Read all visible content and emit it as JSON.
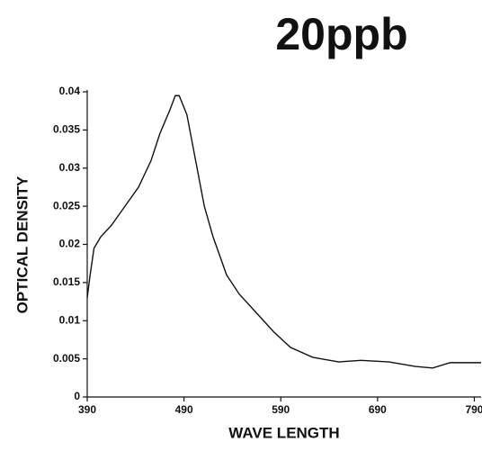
{
  "chart_data": {
    "type": "line",
    "title": "20ppb",
    "x_label": "WAVE LENGTH",
    "y_label": "OPTICAL DENSITY",
    "x": [
      390,
      393,
      397,
      404,
      415,
      429,
      443,
      456,
      465,
      475,
      481,
      485,
      493,
      502,
      511,
      520,
      534,
      547,
      565,
      583,
      600,
      623,
      650,
      673,
      702,
      729,
      747,
      765,
      797
    ],
    "series": [
      {
        "name": "20ppb",
        "color": "#111111",
        "values": [
          0.013,
          0.016,
          0.0195,
          0.021,
          0.0225,
          0.025,
          0.0275,
          0.031,
          0.0345,
          0.0375,
          0.0395,
          0.0395,
          0.037,
          0.031,
          0.025,
          0.021,
          0.016,
          0.0135,
          0.011,
          0.0085,
          0.0065,
          0.0052,
          0.0046,
          0.0048,
          0.0046,
          0.004,
          0.0038,
          0.0045,
          0.0045
        ]
      }
    ],
    "xlim": [
      390,
      797
    ],
    "xticks": [
      390,
      490,
      590,
      690,
      790
    ],
    "ylim": [
      0,
      0.04
    ],
    "yticks": [
      0,
      0.005,
      0.01,
      0.015,
      0.02,
      0.025,
      0.03,
      0.035,
      0.04
    ]
  }
}
